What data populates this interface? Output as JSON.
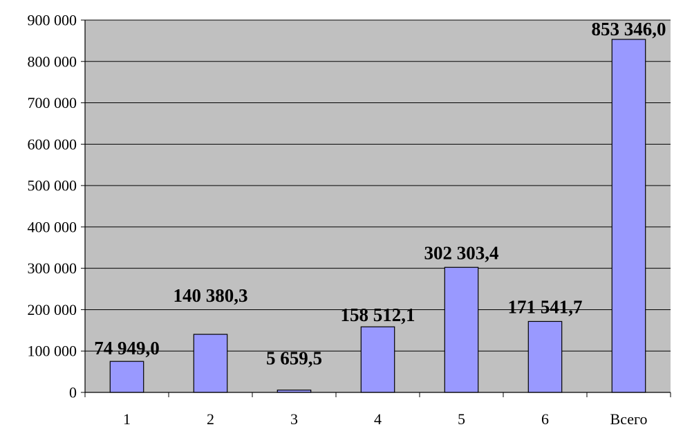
{
  "chart_data": {
    "type": "bar",
    "title": "",
    "xlabel": "",
    "ylabel": "",
    "categories": [
      "1",
      "2",
      "3",
      "4",
      "5",
      "6",
      "Всего"
    ],
    "values": [
      74949.0,
      140380.3,
      5659.5,
      158512.1,
      302303.4,
      171541.7,
      853346.0
    ],
    "data_labels": [
      "74 949,0",
      "140 380,3",
      "5 659,5",
      "158 512,1",
      "302 303,4",
      "171 541,7",
      "853 346,0"
    ],
    "ylim": [
      0,
      900000
    ],
    "y_ticks": [
      0,
      100000,
      200000,
      300000,
      400000,
      500000,
      600000,
      700000,
      800000,
      900000
    ],
    "y_tick_labels": [
      "0",
      "100 000",
      "200 000",
      "300 000",
      "400 000",
      "500 000",
      "600 000",
      "700 000",
      "800 000",
      "900 000"
    ],
    "grid": true,
    "legend": "none",
    "colors": {
      "plot_background": "#c0c0c0",
      "bar_fill": "#9999ff",
      "bar_stroke": "#000000",
      "gridline": "#000000",
      "text": "#000000"
    }
  }
}
